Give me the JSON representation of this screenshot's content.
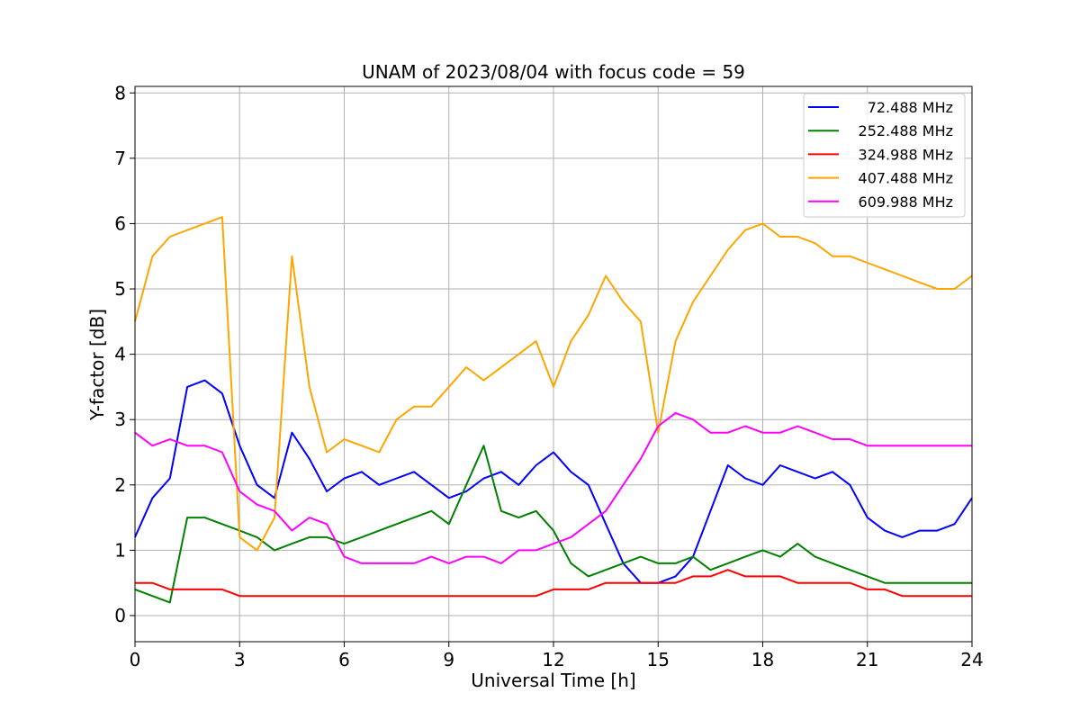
{
  "chart_data": {
    "type": "line",
    "title": "UNAM of 2023/08/04 with focus code = 59",
    "xlabel": "Universal Time [h]",
    "ylabel": "Y-factor [dB]",
    "xlim": [
      0,
      24
    ],
    "ylim": [
      -0.4,
      8.1
    ],
    "xticks": [
      0,
      3,
      6,
      9,
      12,
      15,
      18,
      21,
      24
    ],
    "yticks": [
      0,
      1,
      2,
      3,
      4,
      5,
      6,
      7,
      8
    ],
    "grid": true,
    "legend_position": "top-right",
    "x": [
      0,
      0.5,
      1,
      1.5,
      2,
      2.5,
      3,
      3.5,
      4,
      4.5,
      5,
      5.5,
      6,
      6.5,
      7,
      7.5,
      8,
      8.5,
      9,
      9.5,
      10,
      10.5,
      11,
      11.5,
      12,
      12.5,
      13,
      13.5,
      14,
      14.5,
      15,
      15.5,
      16,
      16.5,
      17,
      17.5,
      18,
      18.5,
      19,
      19.5,
      20,
      20.5,
      21,
      21.5,
      22,
      22.5,
      23,
      23.5,
      24
    ],
    "series": [
      {
        "name": "72.488 MHz",
        "color": "#0000ff",
        "values": [
          1.2,
          1.8,
          2.1,
          3.5,
          3.6,
          3.4,
          2.6,
          2.0,
          1.8,
          2.8,
          2.4,
          1.9,
          2.1,
          2.2,
          2.0,
          2.1,
          2.2,
          2.0,
          1.8,
          1.9,
          2.1,
          2.2,
          2.0,
          2.3,
          2.5,
          2.2,
          2.0,
          1.4,
          0.8,
          0.5,
          0.5,
          0.6,
          0.9,
          1.6,
          2.3,
          2.1,
          2.0,
          2.3,
          2.2,
          2.1,
          2.2,
          2.0,
          1.5,
          1.3,
          1.2,
          1.3,
          1.3,
          1.4,
          1.8
        ]
      },
      {
        "name": "252.488 MHz",
        "color": "#008000",
        "values": [
          0.4,
          0.3,
          0.2,
          1.5,
          1.5,
          1.4,
          1.3,
          1.2,
          1.0,
          1.1,
          1.2,
          1.2,
          1.1,
          1.2,
          1.3,
          1.4,
          1.5,
          1.6,
          1.4,
          2.0,
          2.6,
          1.6,
          1.5,
          1.6,
          1.3,
          0.8,
          0.6,
          0.7,
          0.8,
          0.9,
          0.8,
          0.8,
          0.9,
          0.7,
          0.8,
          0.9,
          1.0,
          0.9,
          1.1,
          0.9,
          0.8,
          0.7,
          0.6,
          0.5,
          0.5,
          0.5,
          0.5,
          0.5,
          0.5
        ]
      },
      {
        "name": "324.988 MHz",
        "color": "#ff0000",
        "values": [
          0.5,
          0.5,
          0.4,
          0.4,
          0.4,
          0.4,
          0.3,
          0.3,
          0.3,
          0.3,
          0.3,
          0.3,
          0.3,
          0.3,
          0.3,
          0.3,
          0.3,
          0.3,
          0.3,
          0.3,
          0.3,
          0.3,
          0.3,
          0.3,
          0.4,
          0.4,
          0.4,
          0.5,
          0.5,
          0.5,
          0.5,
          0.5,
          0.6,
          0.6,
          0.7,
          0.6,
          0.6,
          0.6,
          0.5,
          0.5,
          0.5,
          0.5,
          0.4,
          0.4,
          0.3,
          0.3,
          0.3,
          0.3,
          0.3
        ]
      },
      {
        "name": "407.488 MHz",
        "color": "#ffa500",
        "values": [
          4.5,
          5.5,
          5.8,
          5.9,
          6.0,
          6.1,
          1.2,
          1.0,
          1.5,
          5.5,
          3.5,
          2.5,
          2.7,
          2.6,
          2.5,
          3.0,
          3.2,
          3.2,
          3.5,
          3.8,
          3.6,
          3.8,
          4.0,
          4.2,
          3.5,
          4.2,
          4.6,
          5.2,
          4.8,
          4.5,
          2.8,
          4.2,
          4.8,
          5.2,
          5.6,
          5.9,
          6.0,
          5.8,
          5.8,
          5.7,
          5.5,
          5.5,
          5.4,
          5.3,
          5.2,
          5.1,
          5.0,
          5.0,
          5.2
        ]
      },
      {
        "name": "609.988 MHz",
        "color": "#ff00ff",
        "values": [
          2.8,
          2.6,
          2.7,
          2.6,
          2.6,
          2.5,
          1.9,
          1.7,
          1.6,
          1.3,
          1.5,
          1.4,
          0.9,
          0.8,
          0.8,
          0.8,
          0.8,
          0.9,
          0.8,
          0.9,
          0.9,
          0.8,
          1.0,
          1.0,
          1.1,
          1.2,
          1.4,
          1.6,
          2.0,
          2.4,
          2.9,
          3.1,
          3.0,
          2.8,
          2.8,
          2.9,
          2.8,
          2.8,
          2.9,
          2.8,
          2.7,
          2.7,
          2.6,
          2.6,
          2.6,
          2.6,
          2.6,
          2.6,
          2.6
        ]
      }
    ]
  }
}
